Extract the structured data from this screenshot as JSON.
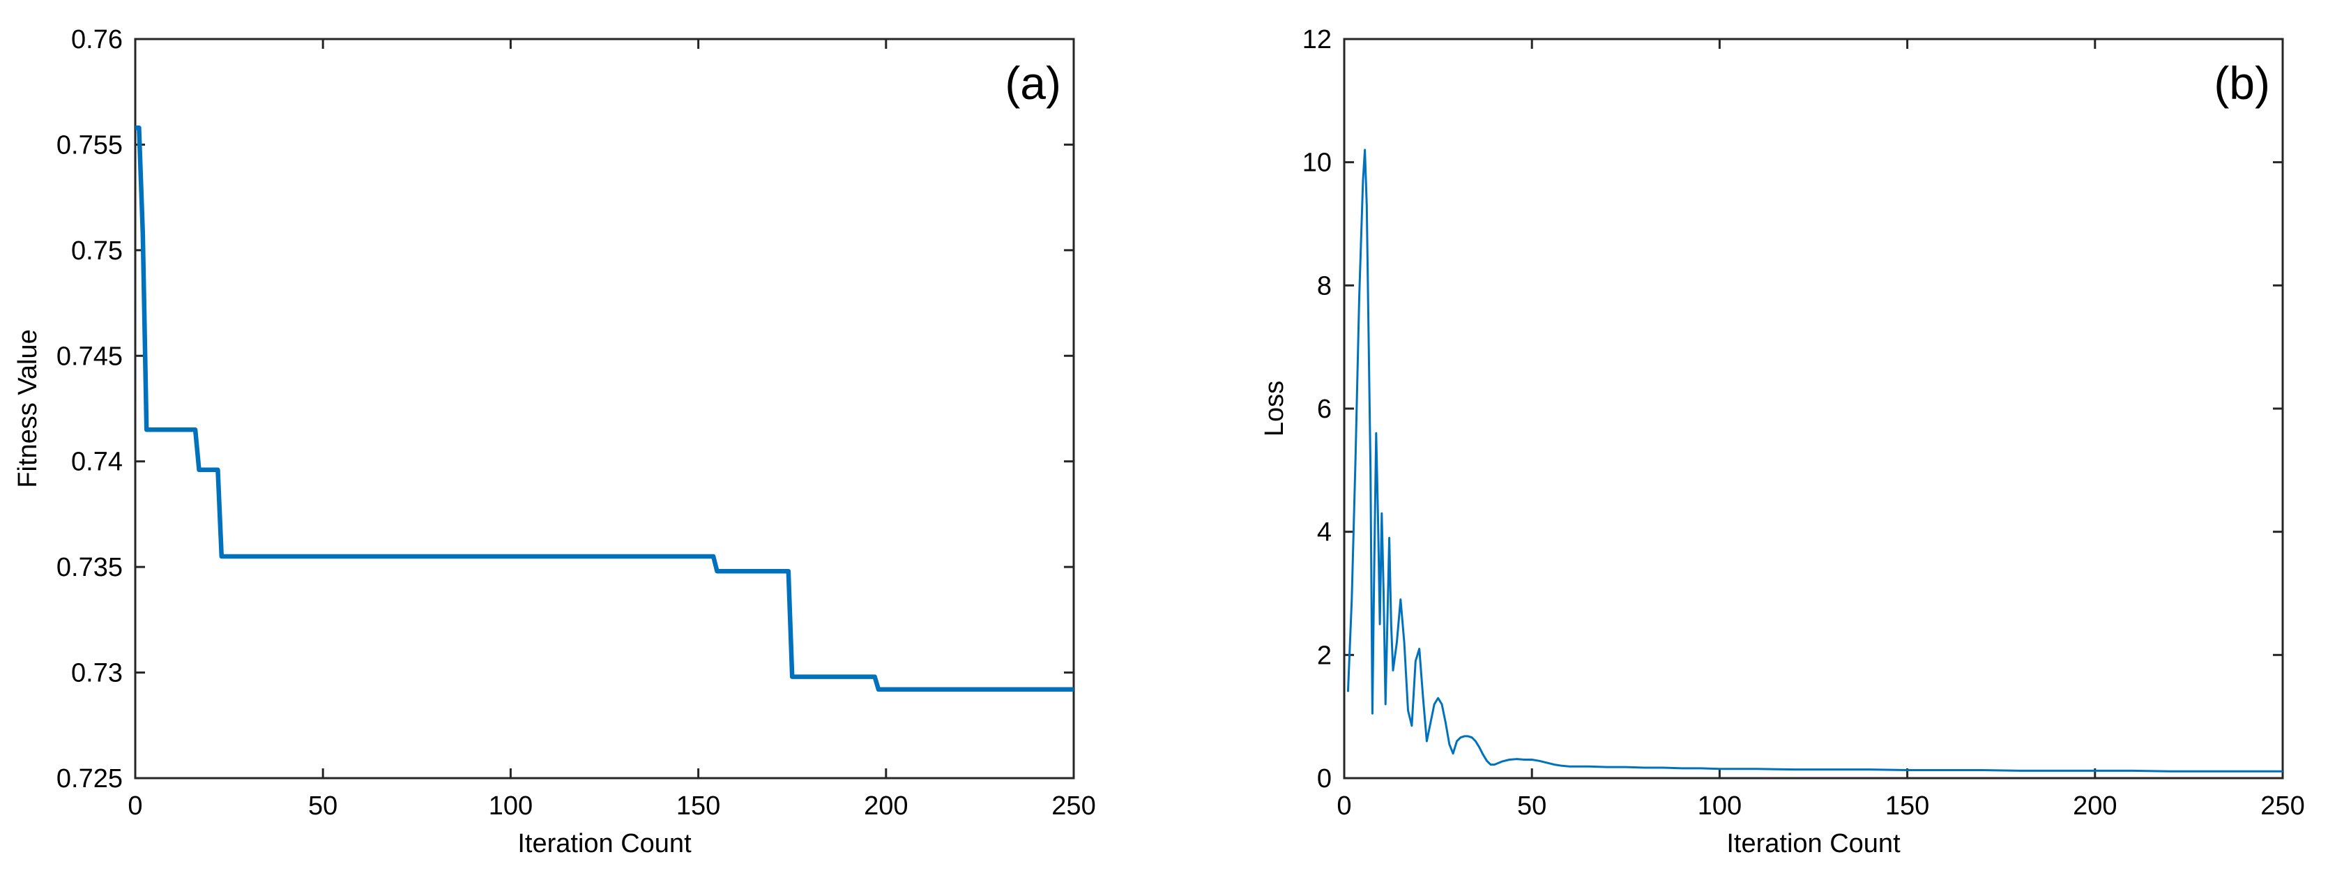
{
  "chart_data": [
    {
      "panel": "a",
      "type": "line",
      "panel_label": "(a)",
      "xlabel": "Iteration Count",
      "ylabel": "Fitness Value",
      "xlim": [
        0,
        250
      ],
      "ylim": [
        0.725,
        0.76
      ],
      "xticks": [
        0,
        50,
        100,
        150,
        200,
        250
      ],
      "yticks": [
        0.725,
        0.73,
        0.735,
        0.74,
        0.745,
        0.75,
        0.755,
        0.76
      ],
      "xtick_labels": [
        "0",
        "50",
        "100",
        "150",
        "200",
        "250"
      ],
      "ytick_labels": [
        "0.725",
        "0.73",
        "0.735",
        "0.74",
        "0.745",
        "0.75",
        "0.755",
        "0.76"
      ],
      "series": [
        {
          "name": "fitness",
          "color": "#0072BD",
          "x": [
            0,
            1,
            2,
            3,
            16,
            17,
            22,
            23,
            154,
            155,
            174,
            175,
            197,
            198,
            250
          ],
          "y": [
            0.7558,
            0.7558,
            0.7508,
            0.7415,
            0.7415,
            0.7396,
            0.7396,
            0.7355,
            0.7355,
            0.7348,
            0.7348,
            0.7298,
            0.7298,
            0.7292,
            0.7292
          ]
        }
      ]
    },
    {
      "panel": "b",
      "type": "line",
      "panel_label": "(b)",
      "xlabel": "Iteration Count",
      "ylabel": "Loss",
      "xlim": [
        0,
        250
      ],
      "ylim": [
        0,
        12
      ],
      "xticks": [
        0,
        50,
        100,
        150,
        200,
        250
      ],
      "yticks": [
        0,
        2,
        4,
        6,
        8,
        10,
        12
      ],
      "xtick_labels": [
        "0",
        "50",
        "100",
        "150",
        "200",
        "250"
      ],
      "ytick_labels": [
        "0",
        "2",
        "4",
        "6",
        "8",
        "10",
        "12"
      ],
      "series": [
        {
          "name": "loss",
          "color": "#0072BD",
          "x": [
            1,
            2,
            3,
            4,
            5,
            5.5,
            6,
            7,
            7.5,
            8,
            8.5,
            9,
            9.5,
            10,
            10.5,
            11,
            12,
            12.5,
            13,
            14,
            15,
            16,
            17,
            18,
            19,
            20,
            21,
            22,
            23,
            24,
            25,
            26,
            27,
            28,
            29,
            30,
            31,
            32,
            33,
            34,
            35,
            36,
            37,
            38,
            39,
            40,
            42,
            44,
            46,
            48,
            50,
            52,
            54,
            56,
            58,
            60,
            65,
            70,
            75,
            80,
            85,
            90,
            95,
            100,
            110,
            120,
            130,
            140,
            150,
            160,
            170,
            180,
            190,
            200,
            210,
            220,
            230,
            240,
            250
          ],
          "y": [
            1.4,
            2.9,
            5.2,
            7.8,
            9.7,
            10.2,
            9.3,
            5.0,
            1.05,
            3.5,
            5.6,
            4.2,
            2.5,
            4.3,
            3.0,
            1.2,
            3.9,
            2.5,
            1.75,
            2.2,
            2.9,
            2.2,
            1.1,
            0.85,
            1.9,
            2.1,
            1.3,
            0.6,
            0.9,
            1.2,
            1.3,
            1.2,
            0.9,
            0.55,
            0.4,
            0.6,
            0.66,
            0.68,
            0.68,
            0.66,
            0.6,
            0.5,
            0.38,
            0.28,
            0.22,
            0.22,
            0.27,
            0.3,
            0.31,
            0.3,
            0.3,
            0.28,
            0.25,
            0.22,
            0.2,
            0.19,
            0.19,
            0.18,
            0.18,
            0.17,
            0.17,
            0.16,
            0.16,
            0.15,
            0.15,
            0.14,
            0.14,
            0.14,
            0.13,
            0.13,
            0.13,
            0.12,
            0.12,
            0.12,
            0.12,
            0.11,
            0.11,
            0.11,
            0.11
          ]
        }
      ]
    }
  ]
}
